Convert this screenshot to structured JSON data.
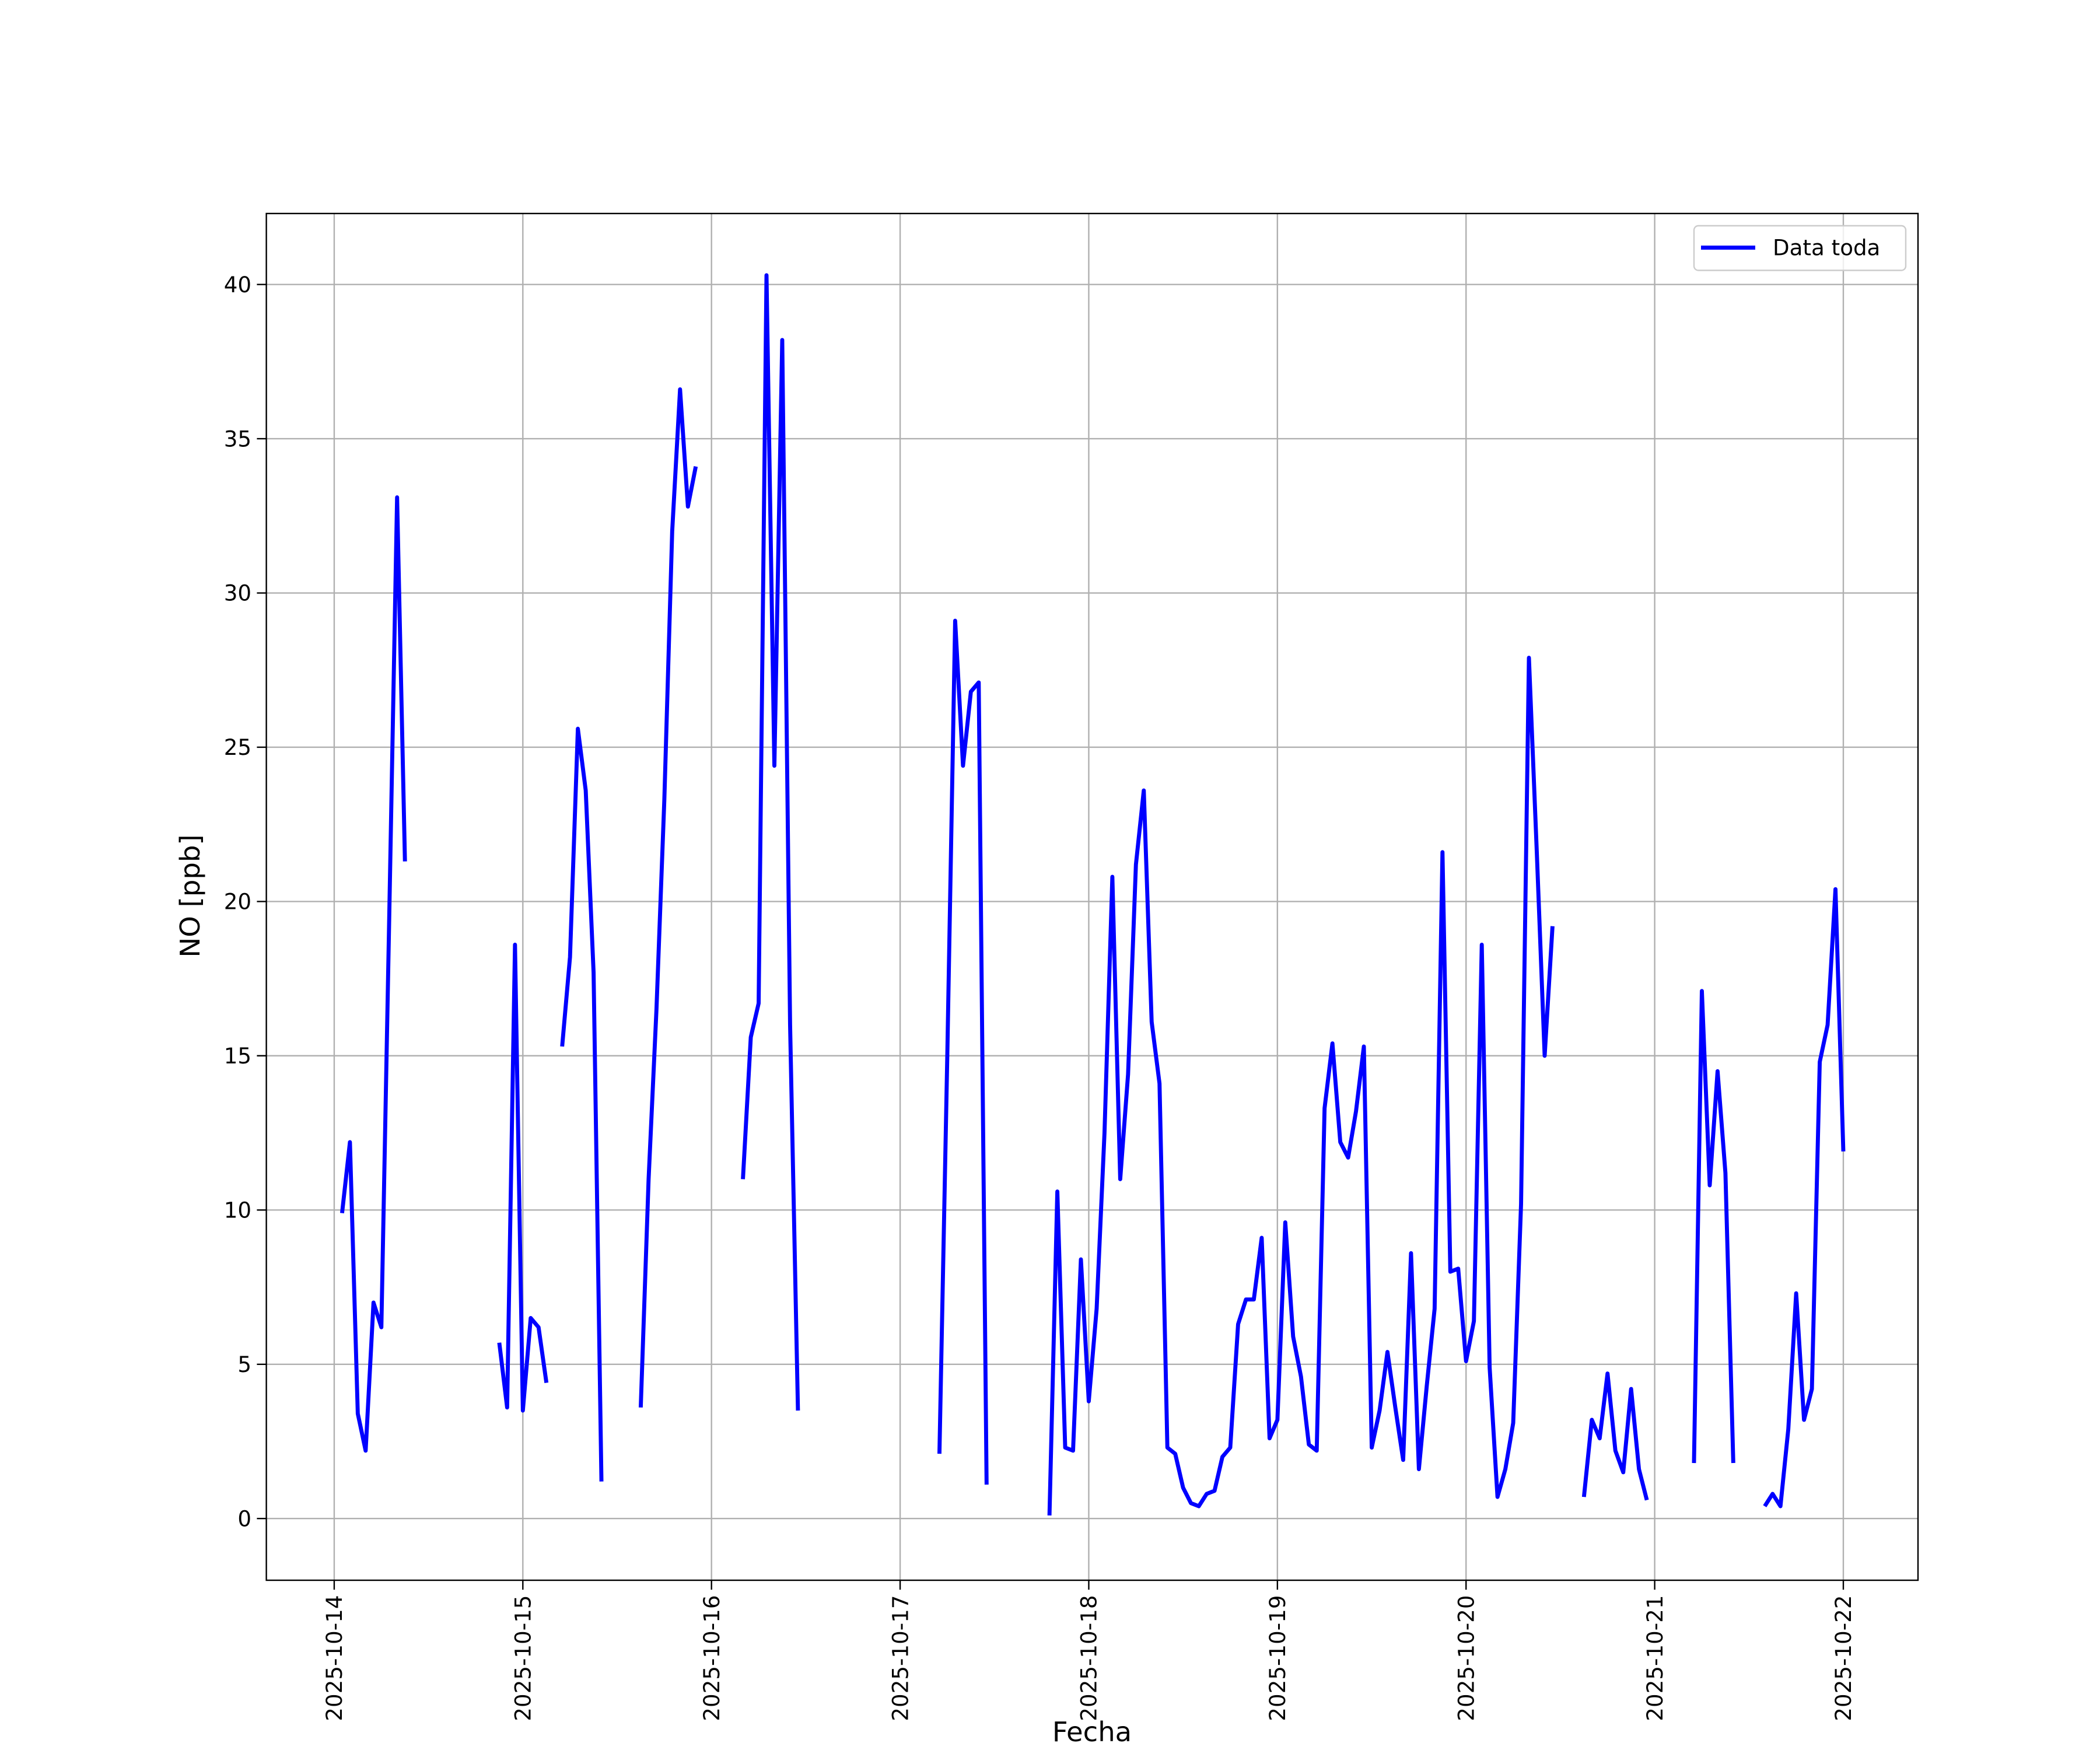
{
  "chart_data": {
    "type": "line",
    "xlabel": "Fecha",
    "ylabel": "NO [ppb]",
    "x": [
      "2025-10-14 01:00",
      "2025-10-14 02:00",
      "2025-10-14 03:00",
      "2025-10-14 04:00",
      "2025-10-14 05:00",
      "2025-10-14 06:00",
      "2025-10-14 07:00",
      "2025-10-14 08:00",
      "2025-10-14 09:00",
      "2025-10-14 12:00",
      "2025-10-14 21:00",
      "2025-10-14 22:00",
      "2025-10-14 23:00",
      "2025-10-15 00:00",
      "2025-10-15 01:00",
      "2025-10-15 02:00",
      "2025-10-15 03:00",
      "2025-10-15 04:00",
      "2025-10-15 05:00",
      "2025-10-15 06:00",
      "2025-10-15 07:00",
      "2025-10-15 08:00",
      "2025-10-15 09:00",
      "2025-10-15 10:00",
      "2025-10-15 12:00",
      "2025-10-15 15:00",
      "2025-10-15 16:00",
      "2025-10-15 17:00",
      "2025-10-15 18:00",
      "2025-10-15 19:00",
      "2025-10-15 20:00",
      "2025-10-15 21:00",
      "2025-10-15 22:00",
      "2025-10-16 01:00",
      "2025-10-16 04:00",
      "2025-10-16 05:00",
      "2025-10-16 06:00",
      "2025-10-16 07:00",
      "2025-10-16 08:00",
      "2025-10-16 09:00",
      "2025-10-16 10:00",
      "2025-10-16 11:00",
      "2025-10-16 20:00",
      "2025-10-17 05:00",
      "2025-10-17 06:00",
      "2025-10-17 07:00",
      "2025-10-17 08:00",
      "2025-10-17 09:00",
      "2025-10-17 10:00",
      "2025-10-17 11:00",
      "2025-10-17 15:00",
      "2025-10-17 19:00",
      "2025-10-17 20:00",
      "2025-10-17 21:00",
      "2025-10-17 22:00",
      "2025-10-17 23:00",
      "2025-10-18 00:00",
      "2025-10-18 01:00",
      "2025-10-18 02:00",
      "2025-10-18 03:00",
      "2025-10-18 04:00",
      "2025-10-18 05:00",
      "2025-10-18 06:00",
      "2025-10-18 07:00",
      "2025-10-18 08:00",
      "2025-10-18 09:00",
      "2025-10-18 10:00",
      "2025-10-18 11:00",
      "2025-10-18 12:00",
      "2025-10-18 13:00",
      "2025-10-18 14:00",
      "2025-10-18 15:00",
      "2025-10-18 16:00",
      "2025-10-18 17:00",
      "2025-10-18 18:00",
      "2025-10-18 19:00",
      "2025-10-18 20:00",
      "2025-10-18 21:00",
      "2025-10-18 22:00",
      "2025-10-18 23:00",
      "2025-10-19 00:00",
      "2025-10-19 01:00",
      "2025-10-19 02:00",
      "2025-10-19 03:00",
      "2025-10-19 04:00",
      "2025-10-19 05:00",
      "2025-10-19 06:00",
      "2025-10-19 07:00",
      "2025-10-19 08:00",
      "2025-10-19 09:00",
      "2025-10-19 10:00",
      "2025-10-19 11:00",
      "2025-10-19 12:00",
      "2025-10-19 13:00",
      "2025-10-19 14:00",
      "2025-10-19 15:00",
      "2025-10-19 16:00",
      "2025-10-19 17:00",
      "2025-10-19 18:00",
      "2025-10-19 19:00",
      "2025-10-19 20:00",
      "2025-10-19 21:00",
      "2025-10-19 22:00",
      "2025-10-19 23:00",
      "2025-10-20 00:00",
      "2025-10-20 01:00",
      "2025-10-20 02:00",
      "2025-10-20 03:00",
      "2025-10-20 04:00",
      "2025-10-20 05:00",
      "2025-10-20 06:00",
      "2025-10-20 07:00",
      "2025-10-20 08:00",
      "2025-10-20 09:00",
      "2025-10-20 10:00",
      "2025-10-20 11:00",
      "2025-10-20 13:00",
      "2025-10-20 15:00",
      "2025-10-20 16:00",
      "2025-10-20 17:00",
      "2025-10-20 18:00",
      "2025-10-20 19:00",
      "2025-10-20 20:00",
      "2025-10-20 21:00",
      "2025-10-20 22:00",
      "2025-10-20 23:00",
      "2025-10-21 02:00",
      "2025-10-21 05:00",
      "2025-10-21 06:00",
      "2025-10-21 07:00",
      "2025-10-21 08:00",
      "2025-10-21 09:00",
      "2025-10-21 10:00",
      "2025-10-21 12:00",
      "2025-10-21 14:00",
      "2025-10-21 15:00",
      "2025-10-21 16:00",
      "2025-10-21 17:00",
      "2025-10-21 18:00",
      "2025-10-21 19:00",
      "2025-10-21 20:00",
      "2025-10-21 21:00",
      "2025-10-21 22:00",
      "2025-10-21 23:00",
      "2025-10-22 00:00"
    ],
    "series": [
      {
        "name": "Data toda",
        "color": "#0000ff",
        "values": [
          9.9,
          12.2,
          3.4,
          2.2,
          7.0,
          6.2,
          19.5,
          33.1,
          21.3,
          null,
          5.7,
          3.6,
          18.6,
          3.5,
          6.5,
          6.2,
          4.4,
          null,
          15.3,
          18.2,
          25.6,
          23.6,
          17.7,
          1.2,
          null,
          3.6,
          11,
          16.5,
          23.3,
          32,
          36.6,
          32.8,
          34.1,
          null,
          11,
          15.6,
          16.7,
          40.3,
          24.4,
          38.2,
          16,
          3.5,
          null,
          2.1,
          15,
          29.1,
          24.4,
          26.8,
          27.1,
          1.1,
          null,
          0.1,
          10.6,
          2.3,
          2.2,
          8.4,
          3.8,
          6.8,
          12.5,
          20.8,
          11,
          14.4,
          21.2,
          23.6,
          16.1,
          14.1,
          2.3,
          2.1,
          1.0,
          0.5,
          0.4,
          0.8,
          0.9,
          2.0,
          2.3,
          6.3,
          7.1,
          7.1,
          9.1,
          2.6,
          3.2,
          9.6,
          5.9,
          4.6,
          2.4,
          2.2,
          13.3,
          15.4,
          12.2,
          11.7,
          13.2,
          15.3,
          2.3,
          3.5,
          5.4,
          3.6,
          1.9,
          8.6,
          1.6,
          4.3,
          6.8,
          21.6,
          8.0,
          8.1,
          5.1,
          6.4,
          18.6,
          4.9,
          0.7,
          1.6,
          3.1,
          10.2,
          27.9,
          21.6,
          15,
          19.2,
          null,
          0.7,
          3.2,
          2.6,
          4.7,
          2.2,
          1.5,
          4.2,
          1.6,
          0.6,
          null,
          1.8,
          17.1,
          10.8,
          14.5,
          11.2,
          1.8,
          null,
          0.4,
          0.8,
          0.4,
          2.9,
          7.3,
          3.2,
          4.2,
          14.8,
          16,
          20.4,
          11.9
        ]
      }
    ],
    "xlim": [
      "2025-10-13 15:22",
      "2025-10-22 09:30"
    ],
    "xticks": [
      "2025-10-14",
      "2025-10-15",
      "2025-10-16",
      "2025-10-17",
      "2025-10-18",
      "2025-10-19",
      "2025-10-20",
      "2025-10-21",
      "2025-10-22"
    ],
    "ylim": [
      -2,
      42.3
    ],
    "yticks": [
      0,
      5,
      10,
      15,
      20,
      25,
      30,
      35,
      40
    ],
    "grid": true,
    "legend": "upper right"
  }
}
